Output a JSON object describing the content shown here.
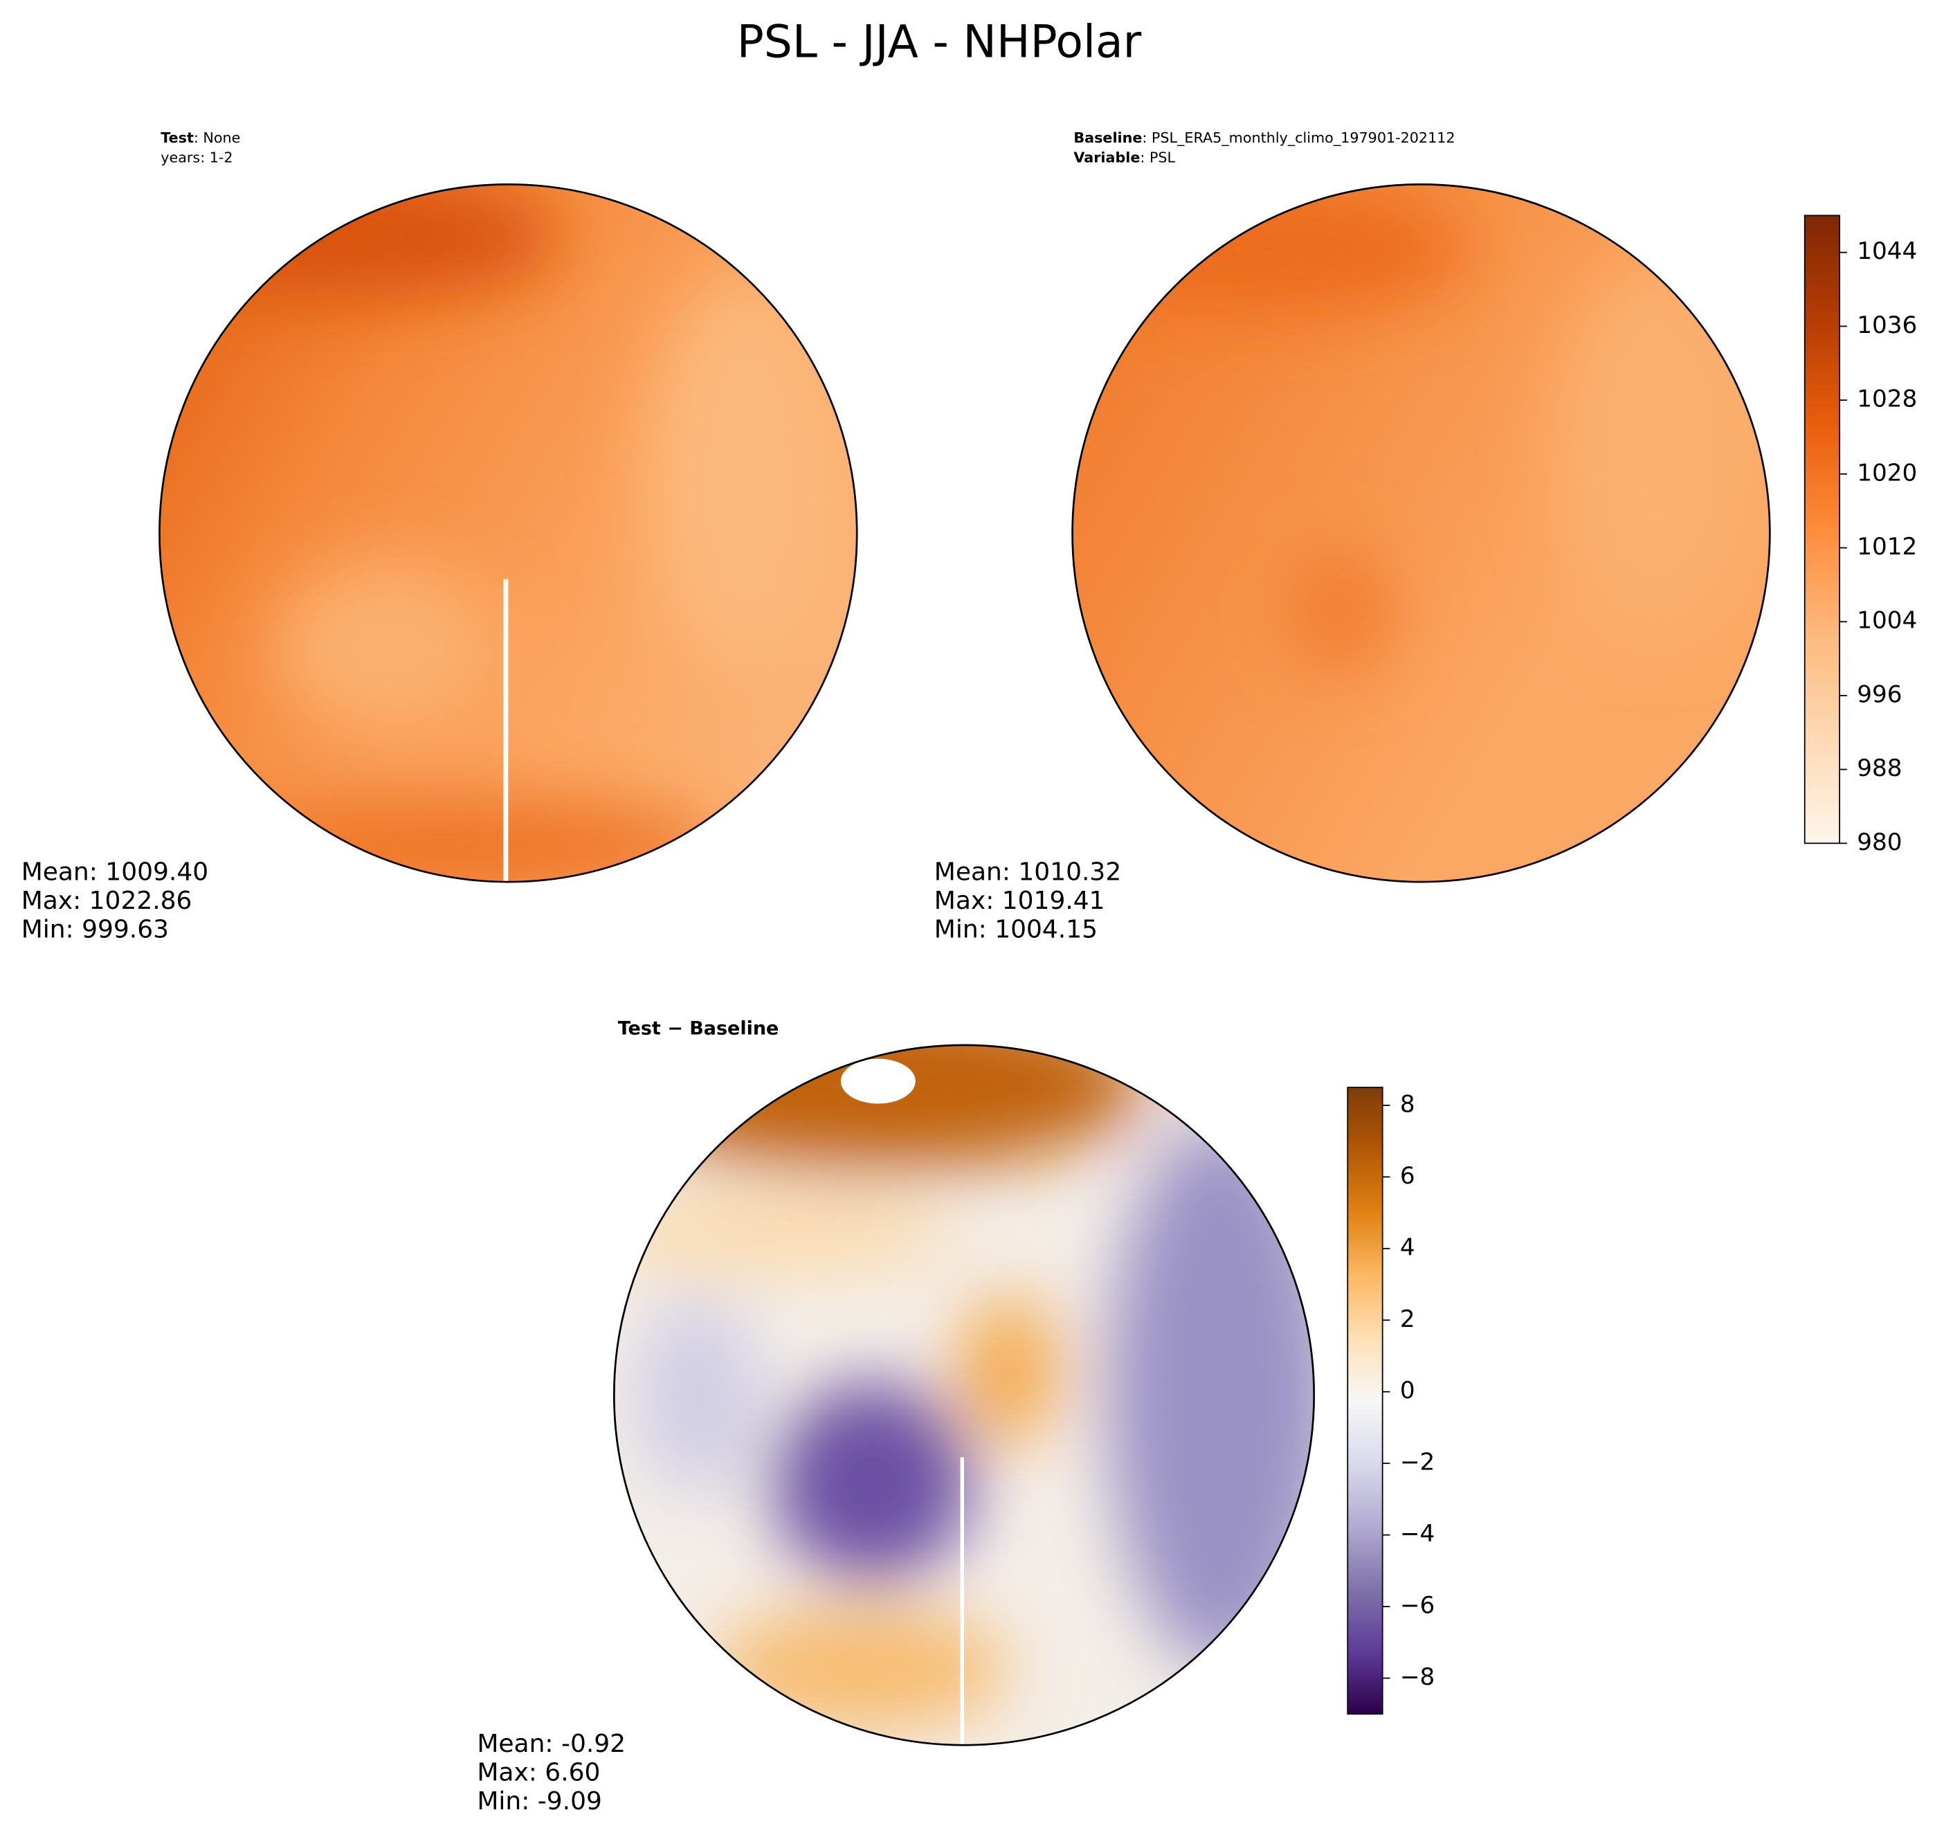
{
  "title": "PSL - JJA - NHPolar",
  "panels": [
    {
      "header": [
        {
          "label": "Test",
          "text": ": None"
        },
        {
          "label": null,
          "text": "years: 1-2"
        }
      ],
      "stats": [
        "Mean: 1009.40",
        "Max: 1022.86",
        "Min: 999.63"
      ]
    },
    {
      "header": [
        {
          "label": "Baseline",
          "text": ": PSL_ERA5_monthly_climo_197901-202112"
        },
        {
          "label": "Variable",
          "text": ": PSL"
        }
      ],
      "stats": [
        "Mean: 1010.32",
        "Max: 1019.41",
        "Min: 1004.15"
      ]
    },
    {
      "header": [
        {
          "label": "Test − Baseline",
          "text": null
        }
      ],
      "stats": [
        "Mean: -0.92",
        "Max:  6.60",
        "Min: -9.09"
      ]
    }
  ],
  "colorbars": [
    {
      "lim": [
        980,
        1048
      ],
      "ticks": [
        980,
        988,
        996,
        1004,
        1012,
        1020,
        1028,
        1036,
        1044
      ],
      "colors": [
        "#fff5eb",
        "#fdd9b4",
        "#fdb97d",
        "#fd8c3b",
        "#e95e0d",
        "#b63c02",
        "#7f2704"
      ]
    },
    {
      "lim": [
        -9,
        8.5
      ],
      "ticks": [
        {
          "value": -8,
          "label": "−8"
        },
        {
          "value": -6,
          "label": "−6"
        },
        {
          "value": -4,
          "label": "−4"
        },
        {
          "value": -2,
          "label": "−2"
        },
        0,
        2,
        4,
        6,
        8
      ],
      "colors": [
        "#2d004b",
        "#5e3c99",
        "#8073ac",
        "#b2abd2",
        "#d8daeb",
        "#f7f7f7",
        "#fee0b6",
        "#fdb863",
        "#e08214",
        "#b35806",
        "#7f3b08"
      ]
    }
  ]
}
